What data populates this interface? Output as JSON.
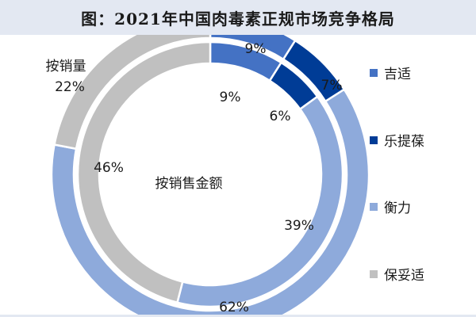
{
  "title": "图：2021年中国肉毒素正规市场竞争格局",
  "colors": {
    "jishi": "#4472c4",
    "leticao": "#003c96",
    "hengli": "#8eaadb",
    "baoanshi": "#c0c0c0"
  },
  "chart_data": {
    "type": "pie",
    "subtype": "double-donut",
    "categories": [
      "吉适",
      "乐提葆",
      "衡力",
      "保妥适"
    ],
    "series": [
      {
        "name": "按销量",
        "ring": "outer",
        "values": [
          9,
          7,
          62,
          22
        ],
        "labels": [
          "9%",
          "7%",
          "62%",
          "22%"
        ]
      },
      {
        "name": "按销售金额",
        "ring": "inner",
        "values": [
          9,
          6,
          39,
          46
        ],
        "labels": [
          "9%",
          "6%",
          "39%",
          "46%"
        ]
      }
    ],
    "legend_position": "right"
  }
}
